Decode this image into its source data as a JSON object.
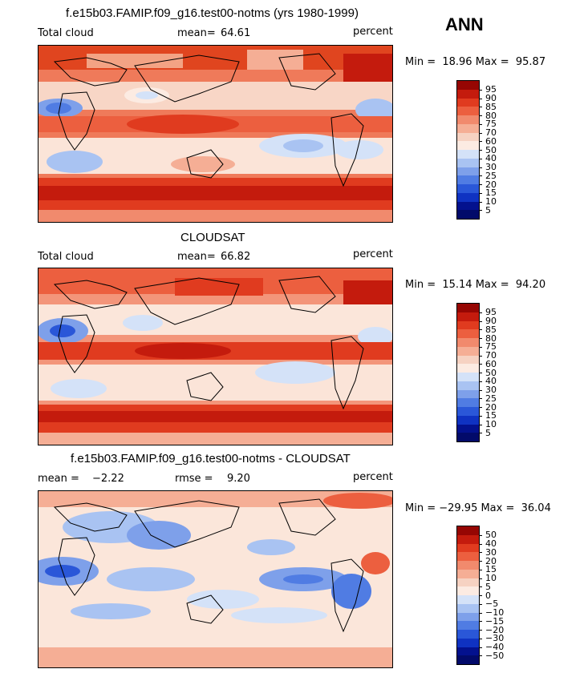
{
  "season": "ANN",
  "colors": {
    "warm": [
      "#f6d2c2",
      "#f5ae95",
      "#f18a6d",
      "#ec5f3f",
      "#e03b1f",
      "#c41b0d",
      "#960603"
    ],
    "cool": [
      "#ffffff",
      "#d4e2f8",
      "#a9c3f2",
      "#7ea0ea",
      "#507ce3",
      "#2a57d8",
      "#0f32c2",
      "#03118e"
    ]
  },
  "panels": [
    {
      "title": "f.e15b03.FAMIP.f09_g16.test00-notms (yrs 1980-1999)",
      "left_label": "Total cloud",
      "mean_label": "mean=",
      "mean_value": "64.61",
      "units": "percent",
      "range_text": "Min =  18.96 Max =  95.87",
      "levels": [
        "95",
        "90",
        "85",
        "80",
        "75",
        "70",
        "60",
        "50",
        "40",
        "30",
        "25",
        "20",
        "15",
        "10",
        "5"
      ],
      "colors": [
        "#960603",
        "#c41b0d",
        "#e03b1f",
        "#ec5f3f",
        "#f18a6d",
        "#f5ae95",
        "#f6d2c2",
        "#fcebe2",
        "#d4e2f8",
        "#a9c3f2",
        "#7ea0ea",
        "#507ce3",
        "#2a57d8",
        "#0f32c2",
        "#03118e",
        "#020a6a"
      ]
    },
    {
      "title": "CLOUDSAT",
      "left_label": "Total cloud",
      "mean_label": "mean=",
      "mean_value": "66.82",
      "units": "percent",
      "range_text": "Min =  15.14 Max =  94.20",
      "levels": [
        "95",
        "90",
        "85",
        "80",
        "75",
        "70",
        "60",
        "50",
        "40",
        "30",
        "25",
        "20",
        "15",
        "10",
        "5"
      ],
      "colors": [
        "#960603",
        "#c41b0d",
        "#e03b1f",
        "#ec5f3f",
        "#f18a6d",
        "#f5ae95",
        "#f6d2c2",
        "#fcebe2",
        "#d4e2f8",
        "#a9c3f2",
        "#7ea0ea",
        "#507ce3",
        "#2a57d8",
        "#0f32c2",
        "#03118e",
        "#020a6a"
      ]
    },
    {
      "title": "f.e15b03.FAMIP.f09_g16.test00-notms - CLOUDSAT",
      "left_label": "mean =",
      "left_value": "−2.22",
      "mean_label": "rmse =",
      "mean_value": "9.20",
      "units": "percent",
      "range_text": "Min = −29.95 Max =  36.04",
      "levels": [
        "50",
        "40",
        "30",
        "20",
        "15",
        "10",
        "5",
        "0",
        "−5",
        "−10",
        "−15",
        "−20",
        "−30",
        "−40",
        "−50"
      ],
      "colors": [
        "#960603",
        "#c41b0d",
        "#e03b1f",
        "#ec5f3f",
        "#f18a6d",
        "#f5ae95",
        "#f6d2c2",
        "#fcebe2",
        "#d4e2f8",
        "#a9c3f2",
        "#7ea0ea",
        "#507ce3",
        "#2a57d8",
        "#0f32c2",
        "#03118e",
        "#020a6a"
      ]
    }
  ]
}
